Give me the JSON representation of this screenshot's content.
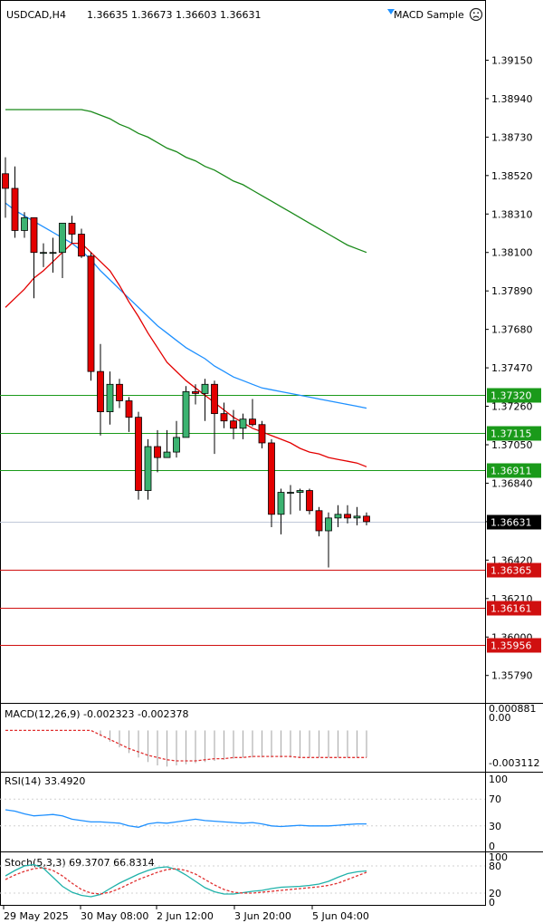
{
  "header": {
    "symbol": "USDCAD,H4",
    "ohlc": "1.36635 1.36673 1.36603 1.36631",
    "expert": "MACD Sample",
    "expert_icon": "sad-face-icon",
    "expert_triangle_icon": "triangle-down-icon"
  },
  "colors": {
    "bull": "#3cb371",
    "bear": "#e30000",
    "ma_fast": "#e30000",
    "ma_mid": "#1e90ff",
    "ma_slow": "#1a8a1a",
    "support": "#d01010",
    "resistance": "#1a9a1a",
    "price_line": "#c0c8d8",
    "signal": "#e03030",
    "rsi": "#1e90ff",
    "stoch_main": "#20b2aa",
    "stoch_signal": "#e03030"
  },
  "chart_data": [
    {
      "type": "candlestick",
      "title": "USDCAD,H4",
      "y_ticks": [
        "1.39150",
        "1.38940",
        "1.38730",
        "1.38520",
        "1.38310",
        "1.38100",
        "1.37890",
        "1.37680",
        "1.37470",
        "1.37260",
        "1.37050",
        "1.36840",
        "1.36630",
        "1.36420",
        "1.36210",
        "1.36000",
        "1.35790"
      ],
      "ylim": [
        1.3566,
        1.3936
      ],
      "x_ticks": [
        "29 May 2025",
        "30 May 08:00",
        "2 Jun 12:00",
        "3 Jun 20:00",
        "5 Jun 04:00"
      ],
      "candles": [
        {
          "o": 1.3853,
          "h": 1.3862,
          "l": 1.3829,
          "c": 1.3845
        },
        {
          "o": 1.3845,
          "h": 1.3857,
          "l": 1.3818,
          "c": 1.3822
        },
        {
          "o": 1.3822,
          "h": 1.3832,
          "l": 1.3818,
          "c": 1.3829
        },
        {
          "o": 1.3829,
          "h": 1.3829,
          "l": 1.3785,
          "c": 1.381
        },
        {
          "o": 1.381,
          "h": 1.3815,
          "l": 1.3802,
          "c": 1.381
        },
        {
          "o": 1.381,
          "h": 1.3818,
          "l": 1.3799,
          "c": 1.381
        },
        {
          "o": 1.381,
          "h": 1.3826,
          "l": 1.3796,
          "c": 1.3826
        },
        {
          "o": 1.3826,
          "h": 1.383,
          "l": 1.3815,
          "c": 1.382
        },
        {
          "o": 1.382,
          "h": 1.3823,
          "l": 1.3807,
          "c": 1.3808
        },
        {
          "o": 1.3808,
          "h": 1.381,
          "l": 1.374,
          "c": 1.3745
        },
        {
          "o": 1.3745,
          "h": 1.376,
          "l": 1.371,
          "c": 1.3723
        },
        {
          "o": 1.3723,
          "h": 1.3745,
          "l": 1.3716,
          "c": 1.3738
        },
        {
          "o": 1.3738,
          "h": 1.3741,
          "l": 1.3725,
          "c": 1.3729
        },
        {
          "o": 1.3729,
          "h": 1.3731,
          "l": 1.3712,
          "c": 1.372
        },
        {
          "o": 1.372,
          "h": 1.3723,
          "l": 1.3675,
          "c": 1.368
        },
        {
          "o": 1.368,
          "h": 1.3708,
          "l": 1.3675,
          "c": 1.3704
        },
        {
          "o": 1.3704,
          "h": 1.3713,
          "l": 1.369,
          "c": 1.3698
        },
        {
          "o": 1.3698,
          "h": 1.3713,
          "l": 1.3698,
          "c": 1.3701
        },
        {
          "o": 1.3701,
          "h": 1.3718,
          "l": 1.3698,
          "c": 1.3709
        },
        {
          "o": 1.3709,
          "h": 1.3737,
          "l": 1.3709,
          "c": 1.3734
        },
        {
          "o": 1.3734,
          "h": 1.3738,
          "l": 1.3727,
          "c": 1.3733
        },
        {
          "o": 1.3733,
          "h": 1.3741,
          "l": 1.3718,
          "c": 1.3738
        },
        {
          "o": 1.3738,
          "h": 1.374,
          "l": 1.37,
          "c": 1.3722
        },
        {
          "o": 1.3722,
          "h": 1.3728,
          "l": 1.3714,
          "c": 1.3718
        },
        {
          "o": 1.3718,
          "h": 1.3724,
          "l": 1.3708,
          "c": 1.3714
        },
        {
          "o": 1.3714,
          "h": 1.3722,
          "l": 1.3708,
          "c": 1.3719
        },
        {
          "o": 1.3719,
          "h": 1.373,
          "l": 1.3715,
          "c": 1.3716
        },
        {
          "o": 1.3716,
          "h": 1.3718,
          "l": 1.3703,
          "c": 1.3706
        },
        {
          "o": 1.3706,
          "h": 1.3708,
          "l": 1.366,
          "c": 1.3667
        },
        {
          "o": 1.3667,
          "h": 1.3681,
          "l": 1.3656,
          "c": 1.3679
        },
        {
          "o": 1.3679,
          "h": 1.3683,
          "l": 1.3667,
          "c": 1.3679
        },
        {
          "o": 1.3679,
          "h": 1.3681,
          "l": 1.3669,
          "c": 1.368
        },
        {
          "o": 1.368,
          "h": 1.3681,
          "l": 1.3667,
          "c": 1.3669
        },
        {
          "o": 1.3669,
          "h": 1.3671,
          "l": 1.3655,
          "c": 1.3658
        },
        {
          "o": 1.3658,
          "h": 1.3668,
          "l": 1.3638,
          "c": 1.3665
        },
        {
          "o": 1.3665,
          "h": 1.3672,
          "l": 1.366,
          "c": 1.3667
        },
        {
          "o": 1.3667,
          "h": 1.3672,
          "l": 1.3662,
          "c": 1.3665
        },
        {
          "o": 1.3665,
          "h": 1.3671,
          "l": 1.3661,
          "c": 1.3666
        },
        {
          "o": 1.3666,
          "h": 1.3668,
          "l": 1.3661,
          "c": 1.3663
        }
      ],
      "ma_fast": [
        1.378,
        1.3785,
        1.379,
        1.3796,
        1.38,
        1.3805,
        1.381,
        1.3815,
        1.3815,
        1.381,
        1.3805,
        1.38,
        1.3792,
        1.3783,
        1.3775,
        1.3766,
        1.3758,
        1.375,
        1.3745,
        1.374,
        1.3736,
        1.3732,
        1.3728,
        1.3724,
        1.372,
        1.3717,
        1.3714,
        1.3712,
        1.371,
        1.3708,
        1.3706,
        1.3703,
        1.3701,
        1.37,
        1.3698,
        1.3697,
        1.3696,
        1.3695,
        1.3693
      ],
      "ma_mid": [
        1.3837,
        1.3833,
        1.383,
        1.3827,
        1.3824,
        1.3821,
        1.3818,
        1.3815,
        1.3811,
        1.3806,
        1.38,
        1.3795,
        1.379,
        1.3785,
        1.378,
        1.3775,
        1.377,
        1.3766,
        1.3762,
        1.3758,
        1.3755,
        1.3752,
        1.3748,
        1.3745,
        1.3742,
        1.374,
        1.3738,
        1.3736,
        1.3735,
        1.3734,
        1.3733,
        1.3732,
        1.3731,
        1.373,
        1.3729,
        1.3728,
        1.3727,
        1.3726,
        1.3725
      ],
      "ma_slow": [
        1.3888,
        1.3888,
        1.3888,
        1.3888,
        1.3888,
        1.3888,
        1.3888,
        1.3888,
        1.3888,
        1.3887,
        1.3885,
        1.3883,
        1.388,
        1.3878,
        1.3875,
        1.3873,
        1.387,
        1.3867,
        1.3865,
        1.3862,
        1.386,
        1.3857,
        1.3855,
        1.3852,
        1.3849,
        1.3847,
        1.3844,
        1.3841,
        1.3838,
        1.3835,
        1.3832,
        1.3829,
        1.3826,
        1.3823,
        1.382,
        1.3817,
        1.3814,
        1.3812,
        1.381
      ],
      "levels": [
        {
          "label": "1.37320",
          "value": 1.3732,
          "kind": "resistance"
        },
        {
          "label": "1.37115",
          "value": 1.37115,
          "kind": "resistance"
        },
        {
          "label": "1.36911",
          "value": 1.36911,
          "kind": "resistance"
        },
        {
          "label": "1.36365",
          "value": 1.36365,
          "kind": "support"
        },
        {
          "label": "1.36161",
          "value": 1.36161,
          "kind": "support"
        },
        {
          "label": "1.35956",
          "value": 1.35956,
          "kind": "support"
        }
      ],
      "current_price": {
        "label": "1.36631",
        "value": 1.36631
      }
    },
    {
      "type": "bar",
      "title": "MACD(12,26,9) -0.002323 -0.002378",
      "y_ticks": [
        "0.000881",
        "0.00",
        "-0.003112"
      ],
      "ylim": [
        -0.0035,
        0.001
      ],
      "histogram": [
        0,
        0,
        0,
        0,
        0,
        0,
        0,
        0,
        0,
        0,
        -0.0005,
        -0.001,
        -0.0015,
        -0.002,
        -0.0024,
        -0.0028,
        -0.0031,
        -0.0032,
        -0.0031,
        -0.003,
        -0.0029,
        -0.0028,
        -0.0027,
        -0.0026,
        -0.0025,
        -0.0024,
        -0.0024,
        -0.0024,
        -0.0024,
        -0.0024,
        -0.0024,
        -0.0024,
        -0.0024,
        -0.0024,
        -0.0024,
        -0.0024,
        -0.0024,
        -0.0024,
        -0.0024
      ],
      "signal": [
        0,
        0,
        0,
        0,
        0,
        0,
        0,
        0,
        0,
        0,
        -0.0004,
        -0.0008,
        -0.0012,
        -0.0016,
        -0.0019,
        -0.0022,
        -0.0024,
        -0.0026,
        -0.0027,
        -0.0027,
        -0.0027,
        -0.0026,
        -0.0025,
        -0.0025,
        -0.0024,
        -0.0024,
        -0.0023,
        -0.0023,
        -0.0023,
        -0.0023,
        -0.0023,
        -0.0024,
        -0.0024,
        -0.0024,
        -0.0024,
        -0.0024,
        -0.0024,
        -0.0024,
        -0.0024
      ]
    },
    {
      "type": "line",
      "title": "RSI(14) 33.4920",
      "y_ticks": [
        "100",
        "70",
        "30",
        "0"
      ],
      "ylim": [
        0,
        100
      ],
      "levels": [
        70,
        30
      ],
      "values": [
        54,
        52,
        48,
        45,
        46,
        47,
        45,
        40,
        38,
        36,
        36,
        35,
        34,
        30,
        28,
        33,
        35,
        34,
        36,
        38,
        40,
        38,
        37,
        36,
        35,
        34,
        35,
        33,
        30,
        29,
        30,
        31,
        30,
        30,
        30,
        31,
        32,
        33,
        33
      ]
    },
    {
      "type": "line",
      "title": "Stoch(5,3,3) 69.3707 66.8314",
      "y_ticks": [
        "100",
        "80",
        "20",
        "0"
      ],
      "ylim": [
        0,
        100
      ],
      "levels": [
        80,
        20
      ],
      "main": [
        58,
        70,
        80,
        83,
        75,
        55,
        35,
        22,
        15,
        12,
        17,
        30,
        42,
        52,
        62,
        70,
        76,
        78,
        72,
        60,
        46,
        32,
        23,
        18,
        18,
        21,
        24,
        26,
        30,
        33,
        34,
        35,
        37,
        40,
        46,
        55,
        63,
        67,
        69
      ],
      "signal": [
        50,
        60,
        68,
        74,
        76,
        70,
        58,
        42,
        28,
        20,
        18,
        22,
        30,
        40,
        50,
        58,
        66,
        72,
        74,
        70,
        62,
        50,
        38,
        28,
        22,
        20,
        20,
        22,
        24,
        26,
        28,
        30,
        32,
        34,
        37,
        42,
        50,
        58,
        66
      ]
    }
  ]
}
